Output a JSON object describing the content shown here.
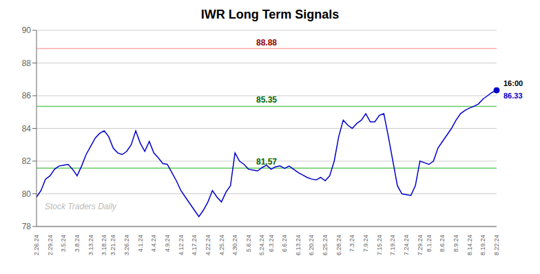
{
  "chart_data": {
    "type": "line",
    "title": "IWR Long Term Signals",
    "categories": [
      "2.26.24",
      null,
      null,
      "2.29.24",
      null,
      null,
      "3.5.24",
      null,
      null,
      "3.8.24",
      null,
      null,
      "3.13.24",
      null,
      null,
      "3.18.24",
      null,
      "3.21.24",
      null,
      null,
      "3.26.24",
      null,
      null,
      "4.1.24",
      null,
      null,
      "4.4.24",
      null,
      null,
      "4.9.24",
      null,
      null,
      "4.12.24",
      null,
      null,
      "4.17.24",
      null,
      null,
      "4.22.24",
      null,
      null,
      "4.25.24",
      null,
      null,
      "4.30.24",
      null,
      null,
      "5.6.24",
      null,
      null,
      "5.24.24",
      null,
      "6.3.24",
      null,
      null,
      "6.6.24",
      null,
      null,
      "6.13.24",
      null,
      null,
      "6.20.24",
      null,
      null,
      "6.25.24",
      null,
      null,
      "6.28.24",
      null,
      null,
      "7.3.24",
      null,
      null,
      "7.9.24",
      null,
      null,
      "7.15.24",
      null,
      null,
      "7.19.24",
      null,
      null,
      "7.24.24",
      null,
      null,
      "7.29.24",
      null,
      "8.1.24",
      null,
      null,
      "8.6.24",
      null,
      null,
      "8.9.24",
      null,
      null,
      "8.14.24",
      null,
      null,
      "8.19.24",
      null,
      null,
      "8.22.24"
    ],
    "values": [
      79.8,
      80.2,
      80.9,
      81.1,
      81.5,
      81.7,
      81.75,
      81.8,
      81.5,
      81.1,
      81.7,
      82.4,
      82.9,
      83.4,
      83.7,
      83.85,
      83.5,
      82.8,
      82.5,
      82.4,
      82.6,
      83.0,
      83.85,
      83.1,
      82.6,
      83.2,
      82.5,
      82.2,
      81.85,
      81.8,
      81.3,
      80.8,
      80.2,
      79.8,
      79.4,
      79.0,
      78.6,
      79.0,
      79.5,
      80.2,
      79.8,
      79.5,
      80.1,
      80.5,
      82.5,
      82.0,
      81.8,
      81.5,
      81.45,
      81.4,
      81.6,
      81.75,
      81.5,
      81.65,
      81.7,
      81.55,
      81.7,
      81.5,
      81.3,
      81.15,
      81.0,
      80.9,
      80.85,
      81.0,
      80.8,
      81.1,
      82.0,
      83.5,
      84.5,
      84.2,
      84.0,
      84.3,
      84.5,
      84.9,
      84.4,
      84.4,
      84.8,
      84.9,
      83.5,
      82.0,
      80.5,
      80.0,
      79.95,
      79.9,
      80.5,
      82.0,
      81.9,
      81.8,
      82.0,
      82.8,
      83.2,
      83.6,
      84.0,
      84.5,
      84.9,
      85.1,
      85.25,
      85.35,
      85.5,
      85.8,
      86.0,
      86.2,
      86.33
    ],
    "color": "#0000cc",
    "ylim": [
      78,
      90
    ],
    "yticks": [
      78,
      80,
      82,
      84,
      86,
      88,
      90
    ],
    "grid": true,
    "hlines": [
      {
        "value": 88.88,
        "color": "#ffaaaa",
        "text_color": "#990000"
      },
      {
        "value": 85.35,
        "color": "#66cc66",
        "text_color": "#006600"
      },
      {
        "value": 81.57,
        "color": "#66cc66",
        "text_color": "#006600"
      }
    ],
    "last_point": {
      "label": "16:00",
      "value": 86.33,
      "color": "#0000cc"
    },
    "watermark": "Stock Traders Daily"
  }
}
